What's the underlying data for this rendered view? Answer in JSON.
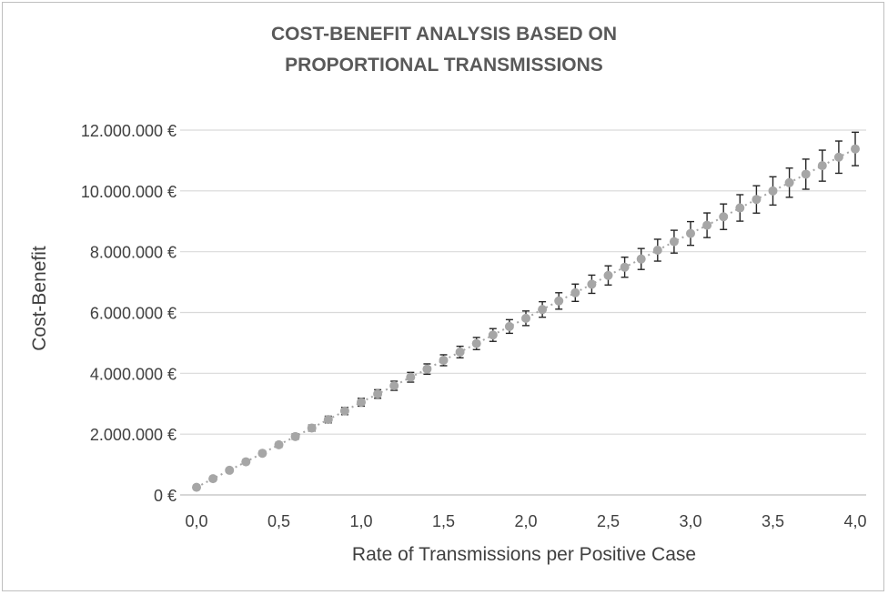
{
  "chart_data": {
    "type": "scatter",
    "title_lines": [
      "COST-BENEFIT ANALYSIS BASED ON",
      "PROPORTIONAL TRANSMISSIONS"
    ],
    "xlabel": "Rate of Transmissions per Positive Case",
    "ylabel": "Cost-Benefit",
    "xlim": [
      0,
      4
    ],
    "ylim": [
      0,
      12000000
    ],
    "x_ticks": [
      0,
      0.5,
      1,
      1.5,
      2,
      2.5,
      3,
      3.5,
      4
    ],
    "x_tick_labels": [
      "0,0",
      "0,5",
      "1,0",
      "1,5",
      "2,0",
      "2,5",
      "3,0",
      "3,5",
      "4,0"
    ],
    "y_ticks": [
      0,
      2000000,
      4000000,
      6000000,
      8000000,
      10000000,
      12000000
    ],
    "y_tick_labels": [
      "0 €",
      "2.000.000 €",
      "4.000.000 €",
      "6.000.000 €",
      "8.000.000 €",
      "10.000.000 €",
      "12.000.000 €"
    ],
    "grid": true,
    "series": [
      {
        "name": "Cost-Benefit",
        "x": [
          0.0,
          0.1,
          0.2,
          0.3,
          0.4,
          0.5,
          0.6,
          0.7,
          0.8,
          0.9,
          1.0,
          1.1,
          1.2,
          1.3,
          1.4,
          1.5,
          1.6,
          1.7,
          1.8,
          1.9,
          2.0,
          2.1,
          2.2,
          2.3,
          2.4,
          2.5,
          2.6,
          2.7,
          2.8,
          2.9,
          3.0,
          3.1,
          3.2,
          3.3,
          3.4,
          3.5,
          3.6,
          3.7,
          3.8,
          3.9,
          4.0
        ],
        "y": [
          250000,
          535000,
          810000,
          1090000,
          1370000,
          1650000,
          1920000,
          2200000,
          2480000,
          2760000,
          3050000,
          3320000,
          3590000,
          3870000,
          4140000,
          4430000,
          4700000,
          4980000,
          5260000,
          5540000,
          5810000,
          6100000,
          6380000,
          6650000,
          6930000,
          7220000,
          7490000,
          7760000,
          8050000,
          8330000,
          8600000,
          8870000,
          9150000,
          9440000,
          9720000,
          10000000,
          10270000,
          10550000,
          10830000,
          11110000,
          11380000
        ],
        "error": [
          50000,
          55000,
          60000,
          65000,
          70000,
          80000,
          90000,
          100000,
          110000,
          120000,
          130000,
          140000,
          150000,
          160000,
          170000,
          180000,
          190000,
          200000,
          210000,
          225000,
          240000,
          255000,
          270000,
          285000,
          300000,
          315000,
          330000,
          345000,
          360000,
          375000,
          390000,
          405000,
          420000,
          435000,
          450000,
          465000,
          480000,
          495000,
          510000,
          530000,
          550000
        ],
        "marker_color": "#a6a6a6",
        "line_color": "#a6a6a6",
        "error_color": "#262626"
      }
    ]
  }
}
